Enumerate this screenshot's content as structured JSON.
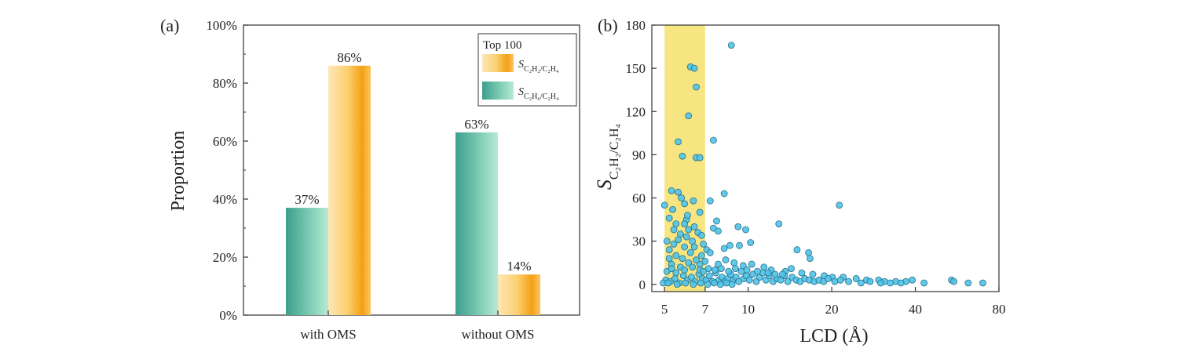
{
  "chart_data": [
    {
      "panel": "(a)",
      "type": "bar",
      "categories": [
        "with OMS",
        "without OMS"
      ],
      "series": [
        {
          "name": "S_C2H6/C2H4",
          "values": [
            37,
            63
          ],
          "labels": [
            "37%",
            "63%"
          ],
          "color": "#3daa96"
        },
        {
          "name": "S_C2H2/C2H4",
          "values": [
            86,
            14
          ],
          "labels": [
            "86%",
            "14%"
          ],
          "color": "#f7a51c"
        }
      ],
      "ylabel": "Proportion",
      "ylim": [
        0,
        100
      ],
      "yticks": [
        "0%",
        "20%",
        "40%",
        "60%",
        "80%",
        "100%"
      ],
      "legend": {
        "title": "Top 100",
        "placement": "top-right"
      }
    },
    {
      "panel": "(b)",
      "type": "scatter",
      "xlabel": "LCD (Å)",
      "ylabel": "S",
      "ylabel_sub": "C2H2/C2H4",
      "x_scale": "log",
      "xlim": [
        4.5,
        80
      ],
      "ylim": [
        -5,
        180
      ],
      "xticks": [
        5,
        7,
        10,
        20,
        40,
        80
      ],
      "yticks": [
        0,
        30,
        60,
        90,
        120,
        150,
        180
      ],
      "highlight_band": {
        "x_range": [
          5,
          7
        ],
        "color": "#f5e06a"
      },
      "point_color": "#4fc3e8",
      "points": [
        [
          8.7,
          166
        ],
        [
          6.2,
          151
        ],
        [
          6.4,
          150
        ],
        [
          6.5,
          137
        ],
        [
          6.1,
          117
        ],
        [
          7.5,
          100
        ],
        [
          5.6,
          99
        ],
        [
          6.5,
          88
        ],
        [
          6.7,
          88
        ],
        [
          5.8,
          89
        ],
        [
          5.3,
          65
        ],
        [
          5.6,
          64
        ],
        [
          5.9,
          56
        ],
        [
          5.0,
          55
        ],
        [
          8.2,
          63
        ],
        [
          21.3,
          55
        ],
        [
          6.7,
          50
        ],
        [
          7.3,
          58
        ],
        [
          6.0,
          45
        ],
        [
          5.9,
          42
        ],
        [
          5.5,
          42
        ],
        [
          5.2,
          46
        ],
        [
          5.4,
          38
        ],
        [
          5.7,
          35
        ],
        [
          6.1,
          38
        ],
        [
          6.4,
          40
        ],
        [
          6.6,
          36
        ],
        [
          6.8,
          34
        ],
        [
          7.5,
          39
        ],
        [
          7.7,
          44
        ],
        [
          7.8,
          37
        ],
        [
          9.2,
          40
        ],
        [
          9.8,
          38
        ],
        [
          12.9,
          42
        ],
        [
          8.6,
          27
        ],
        [
          8.2,
          25
        ],
        [
          9.3,
          27
        ],
        [
          10.2,
          29
        ],
        [
          15.0,
          24
        ],
        [
          16.5,
          22
        ],
        [
          16.7,
          18
        ],
        [
          7.1,
          24
        ],
        [
          7.3,
          22
        ],
        [
          6.9,
          28
        ],
        [
          6.3,
          30
        ],
        [
          5.1,
          30
        ],
        [
          5.4,
          28
        ],
        [
          5.9,
          26
        ],
        [
          6.2,
          22
        ],
        [
          5.5,
          20
        ],
        [
          5.8,
          18
        ],
        [
          5.2,
          18
        ],
        [
          5.3,
          14
        ],
        [
          6.7,
          14
        ],
        [
          7.0,
          16
        ],
        [
          7.8,
          14
        ],
        [
          8.3,
          17
        ],
        [
          8.9,
          15
        ],
        [
          9.6,
          13
        ],
        [
          10.3,
          14
        ],
        [
          11.4,
          12
        ],
        [
          12.1,
          10
        ],
        [
          13.6,
          9
        ],
        [
          14.3,
          11
        ],
        [
          15.6,
          8
        ],
        [
          17.1,
          7
        ],
        [
          18.8,
          6
        ],
        [
          20.1,
          5
        ],
        [
          22.0,
          5
        ],
        [
          24.5,
          4
        ],
        [
          26.7,
          3
        ],
        [
          29.5,
          3
        ],
        [
          31.0,
          2
        ],
        [
          34.0,
          2
        ],
        [
          37.0,
          2
        ],
        [
          39.0,
          3
        ],
        [
          43.0,
          1
        ],
        [
          54.0,
          3
        ],
        [
          55.0,
          2
        ],
        [
          62.0,
          1
        ],
        [
          70.0,
          1
        ],
        [
          5.05,
          3
        ],
        [
          5.25,
          2
        ],
        [
          5.45,
          4
        ],
        [
          5.65,
          1
        ],
        [
          5.85,
          6
        ],
        [
          6.05,
          3
        ],
        [
          6.25,
          5
        ],
        [
          6.45,
          2
        ],
        [
          6.65,
          7
        ],
        [
          6.85,
          4
        ],
        [
          7.05,
          3
        ],
        [
          7.25,
          6
        ],
        [
          7.45,
          2
        ],
        [
          7.65,
          8
        ],
        [
          7.85,
          3
        ],
        [
          8.05,
          5
        ],
        [
          8.25,
          2
        ],
        [
          8.45,
          4
        ],
        [
          8.65,
          7
        ],
        [
          8.85,
          3
        ],
        [
          9.05,
          5
        ],
        [
          9.25,
          2
        ],
        [
          9.45,
          9
        ],
        [
          9.65,
          4
        ],
        [
          9.85,
          6
        ],
        [
          10.1,
          3
        ],
        [
          10.4,
          7
        ],
        [
          10.7,
          2
        ],
        [
          11.0,
          5
        ],
        [
          11.3,
          8
        ],
        [
          11.6,
          3
        ],
        [
          11.9,
          6
        ],
        [
          12.3,
          2
        ],
        [
          12.7,
          4
        ],
        [
          13.1,
          3
        ],
        [
          13.5,
          6
        ],
        [
          13.9,
          2
        ],
        [
          14.4,
          5
        ],
        [
          14.9,
          3
        ],
        [
          15.4,
          2
        ],
        [
          16.0,
          4
        ],
        [
          16.6,
          3
        ],
        [
          17.3,
          2
        ],
        [
          18.0,
          3
        ],
        [
          18.7,
          2
        ],
        [
          19.4,
          4
        ],
        [
          20.5,
          2
        ],
        [
          21.5,
          3
        ],
        [
          23.0,
          2
        ],
        [
          25.5,
          1
        ],
        [
          27.5,
          2
        ],
        [
          30.0,
          1
        ],
        [
          32.5,
          1
        ],
        [
          35.5,
          1
        ],
        [
          5.1,
          9
        ],
        [
          5.3,
          11
        ],
        [
          5.5,
          8
        ],
        [
          5.7,
          12
        ],
        [
          5.9,
          10
        ],
        [
          6.1,
          15
        ],
        [
          6.3,
          12
        ],
        [
          6.5,
          17
        ],
        [
          6.7,
          10
        ],
        [
          6.9,
          9
        ],
        [
          7.2,
          11
        ],
        [
          7.6,
          10
        ],
        [
          8.0,
          11
        ],
        [
          8.5,
          9
        ],
        [
          9.0,
          11
        ],
        [
          9.9,
          10
        ],
        [
          10.8,
          9
        ],
        [
          11.8,
          8
        ],
        [
          12.5,
          7
        ],
        [
          13.3,
          7
        ],
        [
          5.2,
          24
        ],
        [
          5.6,
          31
        ],
        [
          6.0,
          33
        ],
        [
          6.4,
          26
        ],
        [
          6.8,
          20
        ],
        [
          5.35,
          52
        ],
        [
          5.75,
          60
        ],
        [
          6.05,
          48
        ],
        [
          6.35,
          58
        ],
        [
          4.95,
          1
        ],
        [
          5.15,
          1
        ],
        [
          5.55,
          0
        ],
        [
          5.95,
          1
        ],
        [
          6.35,
          0
        ],
        [
          6.75,
          1
        ],
        [
          7.15,
          0
        ],
        [
          7.55,
          1
        ],
        [
          7.95,
          0
        ],
        [
          8.35,
          1
        ],
        [
          8.75,
          0
        ]
      ]
    }
  ]
}
